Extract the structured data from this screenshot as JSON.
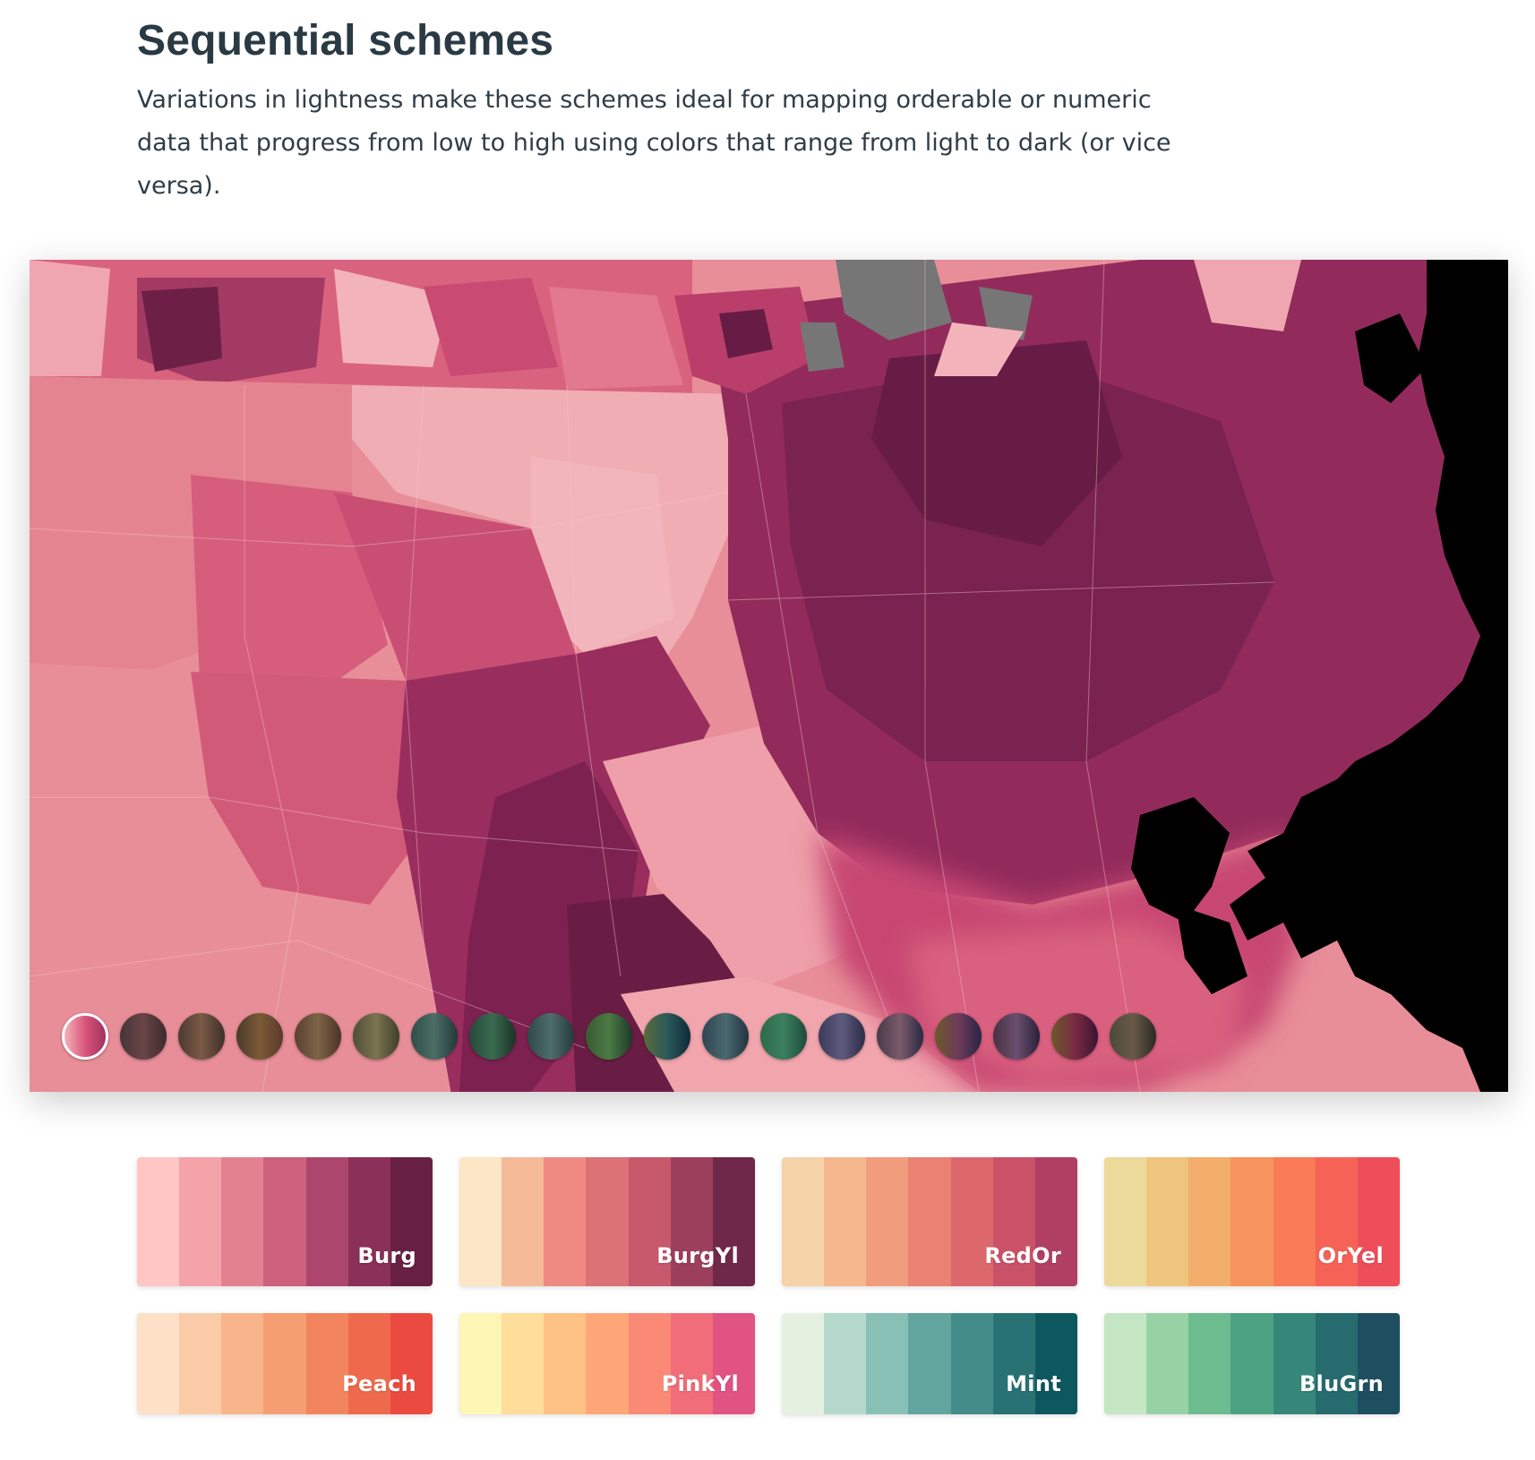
{
  "section": {
    "title": "Sequential schemes",
    "description": "Variations in lightness make these schemes ideal for mapping orderable or numeric data that progress from low to high using colors that range from light to dark (or vice versa)."
  },
  "map": {
    "selected_scheme": "Burg",
    "ocean_color": "#000000",
    "missing_data_color": "#767676",
    "swatches": [
      {
        "colors": [
          "#f3b3bb",
          "#d9567a",
          "#a1305f"
        ],
        "selected": true
      },
      {
        "colors": [
          "#453538",
          "#6a4547",
          "#3a2a2c"
        ]
      },
      {
        "colors": [
          "#4d3a35",
          "#7a5a45",
          "#3e2f2a"
        ]
      },
      {
        "colors": [
          "#4a3a2a",
          "#7b5a36",
          "#5a3a2a"
        ]
      },
      {
        "colors": [
          "#5a4030",
          "#7e6446",
          "#4b3228"
        ]
      },
      {
        "colors": [
          "#4e4e36",
          "#7c7450",
          "#3e3e2a"
        ]
      },
      {
        "colors": [
          "#2e4e48",
          "#4c6e66",
          "#22383a"
        ]
      },
      {
        "colors": [
          "#254a3a",
          "#3a6a50",
          "#1c3328"
        ]
      },
      {
        "colors": [
          "#2e4a48",
          "#4e6c6c",
          "#263a3e"
        ]
      },
      {
        "colors": [
          "#3a5a32",
          "#4a7a44",
          "#1e3a28"
        ]
      },
      {
        "colors": [
          "#5a6a3a",
          "#2a5a5a",
          "#0e2a3a"
        ]
      },
      {
        "colors": [
          "#2e4652",
          "#4a6870",
          "#223440"
        ]
      },
      {
        "colors": [
          "#2e6a4a",
          "#3c8060",
          "#1e4a3a"
        ]
      },
      {
        "colors": [
          "#3c3a58",
          "#5e5a7e",
          "#2c2c44"
        ]
      },
      {
        "colors": [
          "#4a3a4a",
          "#7a5a6a",
          "#2a2a44"
        ]
      },
      {
        "colors": [
          "#6a5a2a",
          "#6e3a5a",
          "#2a2444"
        ]
      },
      {
        "colors": [
          "#4a3040",
          "#6a5070",
          "#2a2038"
        ]
      },
      {
        "colors": [
          "#6a5a2a",
          "#7a2a44",
          "#3a1430"
        ]
      },
      {
        "colors": [
          "#4a4a38",
          "#6a5a48",
          "#2a2a24"
        ]
      }
    ]
  },
  "schemes": [
    {
      "name": "Burg",
      "colors": [
        "#ffc6c4",
        "#f4a3a8",
        "#e38191",
        "#cc607d",
        "#ad466c",
        "#8b3058",
        "#672044"
      ]
    },
    {
      "name": "BurgYl",
      "colors": [
        "#fbe6c5",
        "#f5ba98",
        "#ee8a82",
        "#dc7176",
        "#c8586c",
        "#9c3f5d",
        "#70284a"
      ]
    },
    {
      "name": "RedOr",
      "colors": [
        "#f6d2a9",
        "#f5b78e",
        "#f19c7c",
        "#ea8171",
        "#dd686c",
        "#ca5268",
        "#b13f64"
      ]
    },
    {
      "name": "OrYel",
      "colors": [
        "#ecda9a",
        "#efc47e",
        "#f3ad6a",
        "#f7945d",
        "#f97b57",
        "#f66356",
        "#ee4d5a"
      ]
    },
    {
      "name": "Peach",
      "colors": [
        "#fde0c5",
        "#facba6",
        "#f8b58b",
        "#f59e72",
        "#f2855d",
        "#ef6a4c",
        "#eb4a40"
      ]
    },
    {
      "name": "PinkYl",
      "colors": [
        "#fef6b5",
        "#ffdd9a",
        "#ffc285",
        "#ffa679",
        "#fa8a76",
        "#f16d7a",
        "#e15383"
      ]
    },
    {
      "name": "Mint",
      "colors": [
        "#e4f1e1",
        "#b4d9cc",
        "#89c0b6",
        "#63a6a0",
        "#448c8a",
        "#287274",
        "#0d585f"
      ]
    },
    {
      "name": "BluGrn",
      "colors": [
        "#c4e6c3",
        "#96d2a4",
        "#6dbc90",
        "#4da284",
        "#36877a",
        "#266b6e",
        "#1d4f60"
      ]
    }
  ]
}
